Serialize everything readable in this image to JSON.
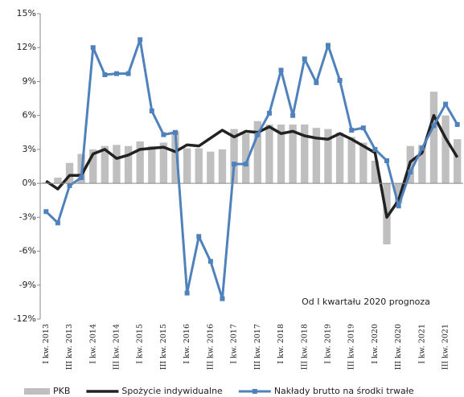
{
  "chart_data": {
    "type": "bar-line",
    "categories": [
      "I kw. 2013",
      null,
      "III kw. 2013",
      null,
      "I kw. 2014",
      null,
      "III kw. 2014",
      null,
      "I kw. 2015",
      null,
      "III kw. 2015",
      null,
      "I kw. 2016",
      null,
      "III kw. 2016",
      null,
      "I kw. 2017",
      null,
      "III kw. 2017",
      null,
      "I kw. 2018",
      null,
      "III kw. 2018",
      null,
      "I kw. 2019",
      null,
      "III kw. 2019",
      null,
      "I kw. 2020",
      null,
      "III kw. 2020",
      null,
      "I kw. 2021",
      null,
      "III kw. 2021",
      null
    ],
    "series": [
      {
        "name": "PKB",
        "type": "bar",
        "color": "#bfbfbf",
        "values": [
          0.1,
          0.5,
          1.8,
          2.6,
          3.0,
          3.3,
          3.4,
          3.3,
          3.7,
          3.3,
          3.6,
          4.6,
          3.1,
          3.1,
          2.8,
          3.0,
          4.8,
          4.4,
          5.5,
          5.2,
          5.2,
          5.2,
          5.2,
          4.9,
          4.8,
          4.5,
          4.1,
          3.6,
          2.0,
          -5.4,
          -1.8,
          3.3,
          3.4,
          8.1,
          6.0,
          3.9
        ]
      },
      {
        "name": "Spożycie indywidualne",
        "type": "line",
        "color": "#222222",
        "values": [
          0.2,
          -0.5,
          0.7,
          0.7,
          2.6,
          3.0,
          2.2,
          2.5,
          3.0,
          3.1,
          3.2,
          2.8,
          3.4,
          3.3,
          4.0,
          4.7,
          4.1,
          4.6,
          4.5,
          5.0,
          4.4,
          4.6,
          4.2,
          4.0,
          3.9,
          4.4,
          3.9,
          3.3,
          2.7,
          -3.0,
          -1.5,
          1.9,
          2.7,
          6.0,
          4.0,
          2.3
        ]
      },
      {
        "name": "Nakłady brutto na środki trwałe",
        "type": "line-marker",
        "color": "#4f81bd",
        "values": [
          -2.5,
          -3.5,
          -0.2,
          0.5,
          12.0,
          9.6,
          9.7,
          9.7,
          12.7,
          6.4,
          4.3,
          4.5,
          -9.7,
          -4.7,
          -6.9,
          -10.2,
          1.7,
          1.7,
          4.3,
          6.2,
          10.0,
          6.0,
          11.0,
          8.9,
          12.2,
          9.1,
          4.7,
          4.9,
          3.0,
          2.0,
          -2.0,
          1.0,
          3.1,
          5.1,
          7.0,
          5.2
        ]
      }
    ],
    "ylim": [
      -12,
      15
    ],
    "yticks": [
      {
        "value": -12,
        "label": "-12%"
      },
      {
        "value": -9,
        "label": "-9%"
      },
      {
        "value": -6,
        "label": "-6%"
      },
      {
        "value": -3,
        "label": "-3%"
      },
      {
        "value": 0,
        "label": "0%"
      },
      {
        "value": 3,
        "label": "3%"
      },
      {
        "value": 6,
        "label": "6%"
      },
      {
        "value": 9,
        "label": "9%"
      },
      {
        "value": 12,
        "label": "12%"
      },
      {
        "value": 15,
        "label": "15%"
      }
    ],
    "annotation": "Od I kwartału 2020 prognoza",
    "legend": "bottom"
  }
}
